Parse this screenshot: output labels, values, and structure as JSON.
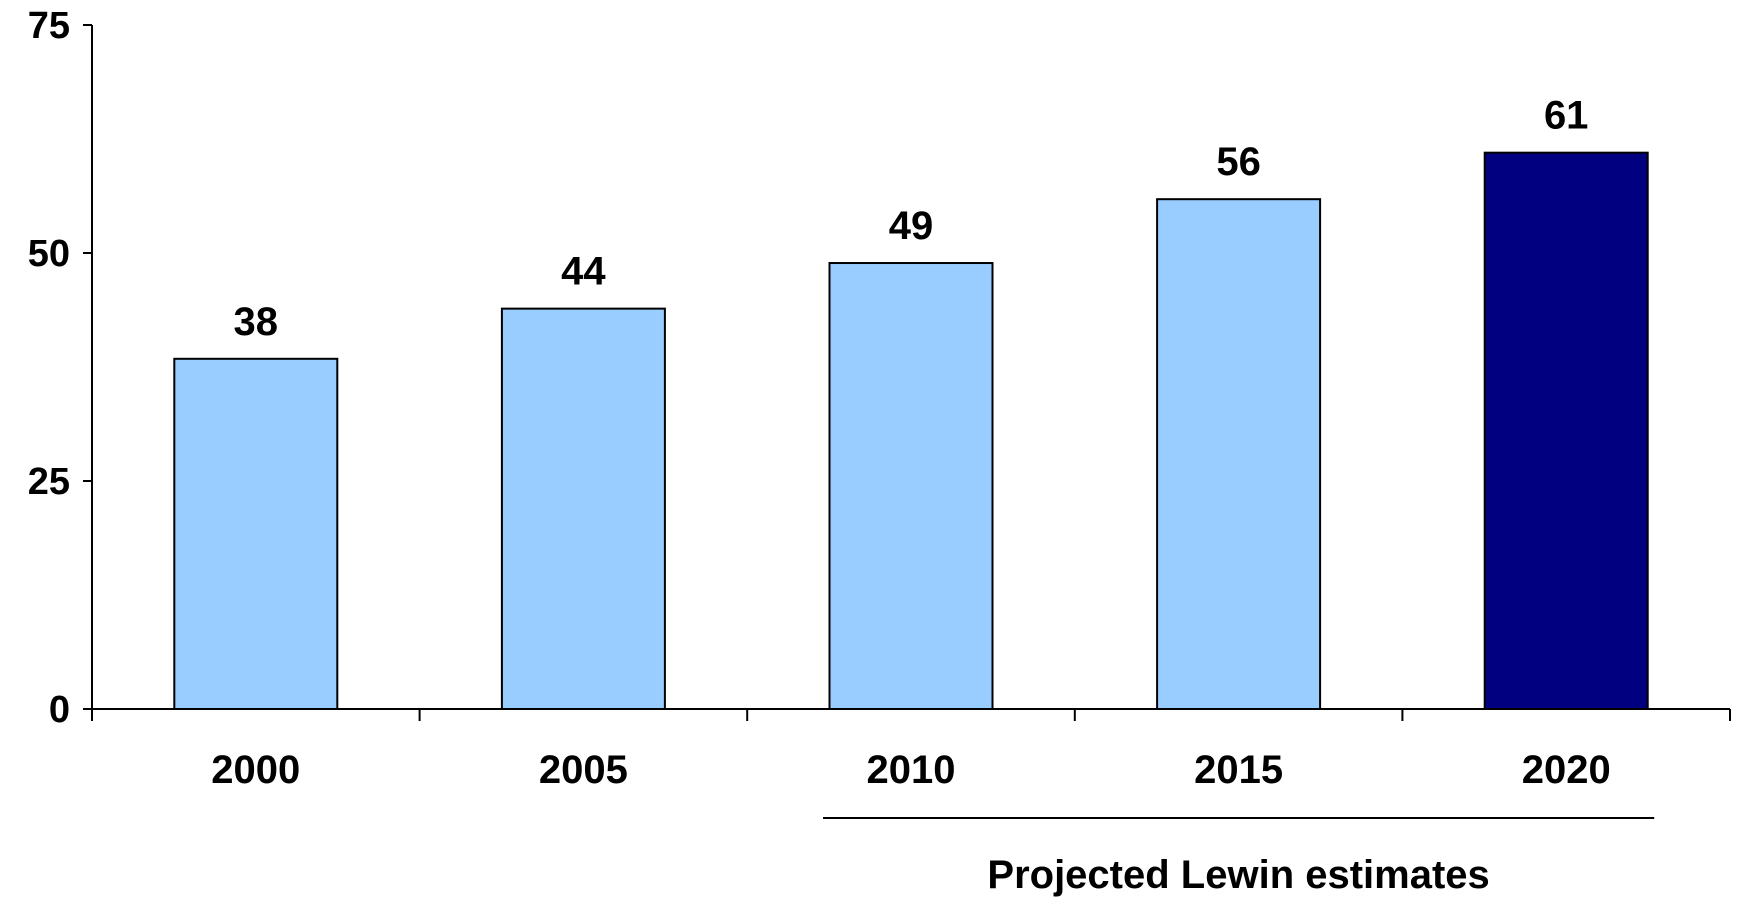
{
  "chart_data": {
    "type": "bar",
    "categories": [
      "2000",
      "2005",
      "2010",
      "2015",
      "2020"
    ],
    "series": [
      {
        "values": [
          38.4,
          43.9,
          48.9,
          55.9,
          61.0
        ]
      }
    ],
    "data_labels": [
      "38",
      "44",
      "49",
      "56",
      "61"
    ],
    "yticks": [
      "0",
      "25",
      "50",
      "75"
    ],
    "ylim": [
      0,
      75
    ],
    "title": "",
    "xlabel": "",
    "ylabel": "",
    "grid": false,
    "bar_colors": [
      "#99ccff",
      "#99ccff",
      "#99ccff",
      "#99ccff",
      "#000080"
    ],
    "annotation": {
      "text": "Projected Lewin estimates",
      "spans_categories": [
        "2010",
        "2015",
        "2020"
      ]
    }
  }
}
